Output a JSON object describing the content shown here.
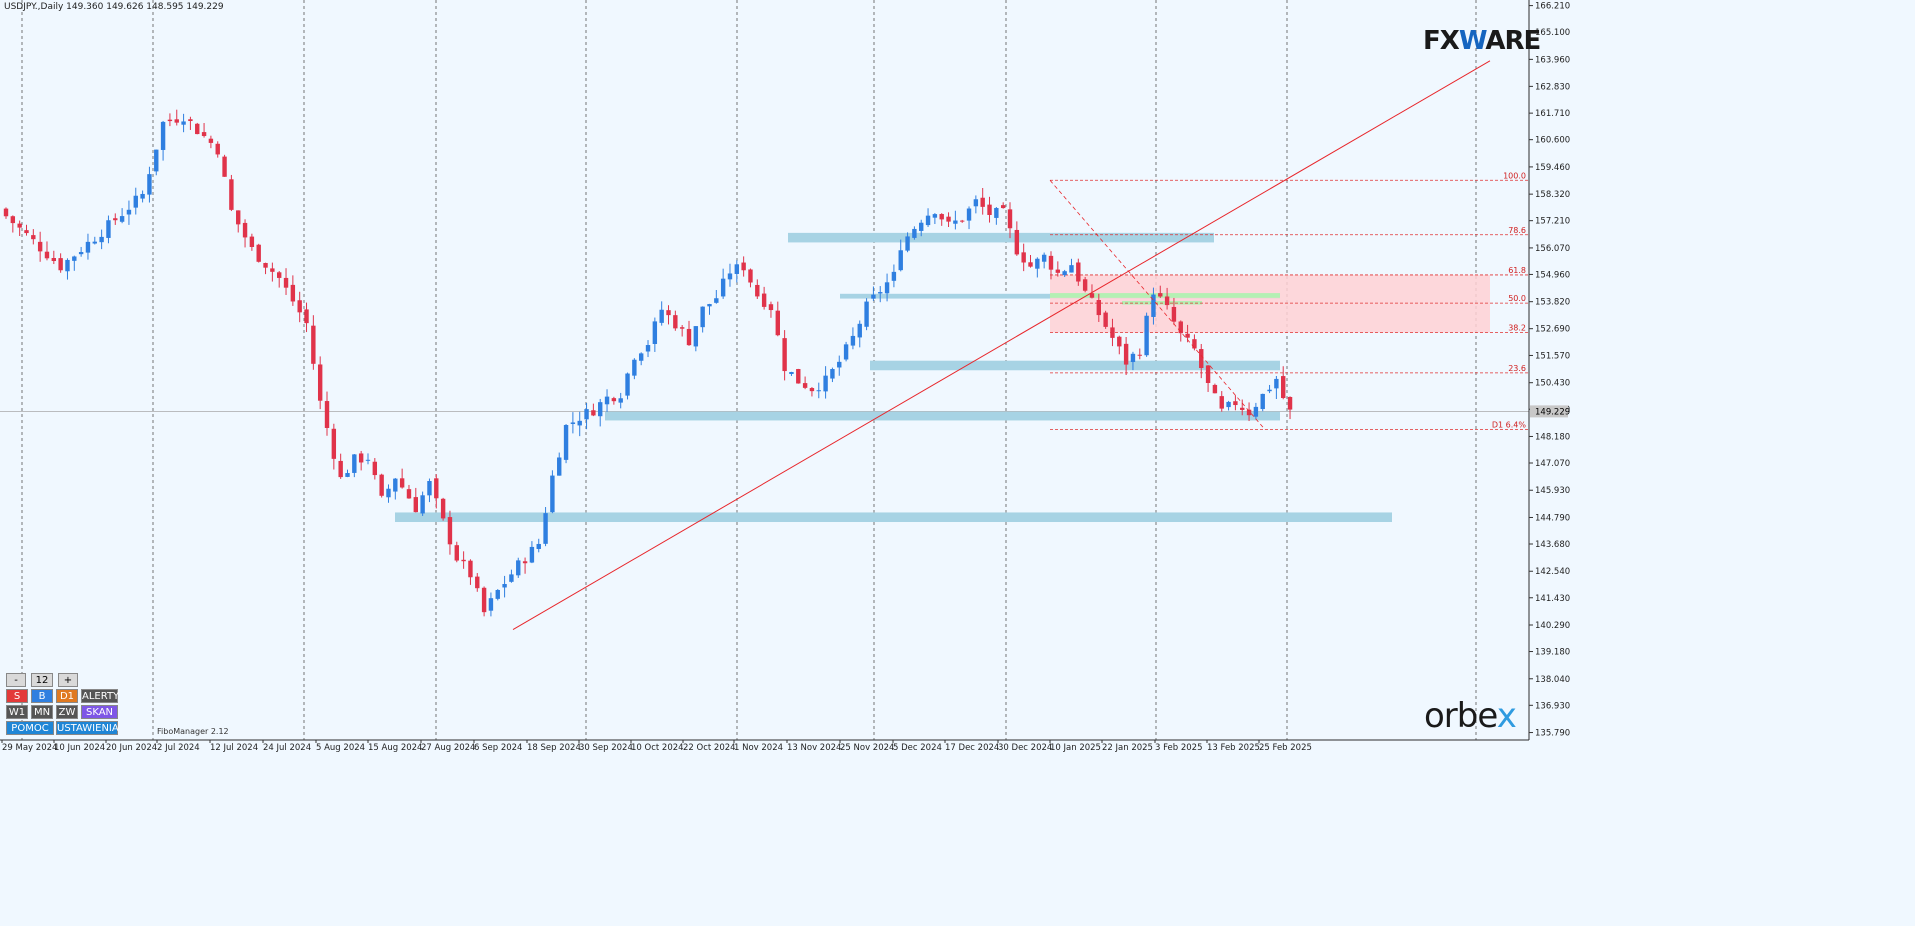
{
  "chart_data": {
    "type": "candlestick",
    "symbol_info": "USDJPY.,Daily  149.360 149.626 148.595 149.229",
    "last_price": "149.229",
    "y_ticks": [
      "166.210",
      "165.100",
      "163.960",
      "162.830",
      "161.710",
      "160.600",
      "159.460",
      "158.320",
      "157.210",
      "156.070",
      "154.960",
      "153.820",
      "152.690",
      "151.570",
      "150.430",
      "149.320",
      "148.180",
      "147.070",
      "145.930",
      "144.790",
      "143.680",
      "142.540",
      "141.430",
      "140.290",
      "139.180",
      "138.040",
      "136.930",
      "135.790"
    ],
    "y_tick_values": [
      166.21,
      165.1,
      163.96,
      162.83,
      161.71,
      160.6,
      159.46,
      158.32,
      157.21,
      156.07,
      154.96,
      153.82,
      152.69,
      151.57,
      150.43,
      149.32,
      148.18,
      147.07,
      145.93,
      144.79,
      143.68,
      142.54,
      141.43,
      140.29,
      139.18,
      138.04,
      136.93,
      135.79
    ],
    "x_ticks": [
      "29 May 2024",
      "10 Jun 2024",
      "20 Jun 2024",
      "2 Jul 2024",
      "12 Jul 2024",
      "24 Jul 2024",
      "5 Aug 2024",
      "15 Aug 2024",
      "27 Aug 2024",
      "6 Sep 2024",
      "18 Sep 2024",
      "30 Sep 2024",
      "10 Oct 2024",
      "22 Oct 2024",
      "1 Nov 2024",
      "13 Nov 2024",
      "25 Nov 2024",
      "5 Dec 2024",
      "17 Dec 2024",
      "30 Dec 2024",
      "10 Jan 2025",
      "22 Jan 2025",
      "3 Feb 2025",
      "13 Feb 2025",
      "25 Feb 2025"
    ],
    "close_points": [
      [
        0,
        157.4
      ],
      [
        8,
        155.3
      ],
      [
        15,
        157.0
      ],
      [
        20,
        158.3
      ],
      [
        23,
        161.3
      ],
      [
        26,
        161.6
      ],
      [
        28,
        161.0
      ],
      [
        31,
        160.2
      ],
      [
        33,
        157.6
      ],
      [
        36,
        156.0
      ],
      [
        40,
        154.8
      ],
      [
        44,
        152.9
      ],
      [
        46,
        149.6
      ],
      [
        49,
        146.4
      ],
      [
        51,
        147.2
      ],
      [
        53,
        147.3
      ],
      [
        55,
        145.5
      ],
      [
        57,
        146.5
      ],
      [
        60,
        145.2
      ],
      [
        62,
        146.2
      ],
      [
        64,
        144.6
      ],
      [
        66,
        143.1
      ],
      [
        68,
        142.4
      ],
      [
        70,
        140.8
      ],
      [
        72,
        141.7
      ],
      [
        75,
        142.8
      ],
      [
        78,
        143.7
      ],
      [
        80,
        146.5
      ],
      [
        82,
        148.6
      ],
      [
        84,
        149.0
      ],
      [
        86,
        149.3
      ],
      [
        88,
        149.8
      ],
      [
        90,
        150.0
      ],
      [
        92,
        151.6
      ],
      [
        94,
        152.1
      ],
      [
        96,
        153.5
      ],
      [
        98,
        152.9
      ],
      [
        100,
        152.2
      ],
      [
        102,
        153.5
      ],
      [
        104,
        154.0
      ],
      [
        106,
        155.1
      ],
      [
        108,
        155.3
      ],
      [
        110,
        154.1
      ],
      [
        112,
        153.6
      ],
      [
        114,
        151.1
      ],
      [
        116,
        150.5
      ],
      [
        118,
        150.2
      ],
      [
        120,
        150.5
      ],
      [
        122,
        151.3
      ],
      [
        124,
        152.3
      ],
      [
        126,
        153.6
      ],
      [
        128,
        154.3
      ],
      [
        130,
        154.9
      ],
      [
        131,
        156.2
      ],
      [
        134,
        157.3
      ],
      [
        136,
        157.7
      ],
      [
        138,
        157.0
      ],
      [
        140,
        157.3
      ],
      [
        142,
        158.0
      ],
      [
        144,
        157.5
      ],
      [
        146,
        157.5
      ],
      [
        148,
        156.0
      ],
      [
        150,
        155.3
      ],
      [
        152,
        155.7
      ],
      [
        154,
        155.0
      ],
      [
        156,
        155.4
      ],
      [
        158,
        154.2
      ],
      [
        160,
        153.3
      ],
      [
        162,
        152.3
      ],
      [
        164,
        151.3
      ],
      [
        166,
        151.8
      ],
      [
        168,
        154.3
      ],
      [
        170,
        153.5
      ],
      [
        172,
        152.4
      ],
      [
        174,
        151.8
      ],
      [
        176,
        150.3
      ],
      [
        178,
        149.2
      ],
      [
        180,
        149.6
      ],
      [
        182,
        149.2
      ],
      [
        184,
        149.9
      ],
      [
        186,
        150.6
      ],
      [
        187,
        149.8
      ],
      [
        188,
        149.2
      ]
    ],
    "annotations": {
      "fib_levels": [
        {
          "label": "100.0",
          "price": 158.9
        },
        {
          "label": "78.6",
          "price": 156.62
        },
        {
          "label": "61.8",
          "price": 154.94
        },
        {
          "label": "50.0",
          "price": 153.76
        },
        {
          "label": "38.2",
          "price": 152.53
        },
        {
          "label": "23.6",
          "price": 150.84
        },
        {
          "label": "D1 6.4%",
          "price": 148.47
        }
      ],
      "indicator_name": "FiboManager 2.12"
    }
  },
  "toolbar": {
    "minus": "-",
    "count": "12",
    "plus": "+",
    "s": "S",
    "b": "B",
    "d1": "D1",
    "alerty": "ALERTY",
    "w1": "W1",
    "mn": "MN",
    "zw": "ZW",
    "skan": "SKAN",
    "pomoc": "POMOC",
    "ustawienia": "USTAWIENIA"
  },
  "brand": {
    "fxware_a": "FX",
    "fxware_w": "W",
    "fxware_b": "ARE",
    "orbex_a": "orbe",
    "orbex_x": "x"
  },
  "colors": {
    "bull": "#2f7fe0",
    "bear": "#e0334a",
    "zone": "#a7d3e4",
    "fib_zone": "#ffd1d5",
    "green_zone": "#b4f0b4",
    "line": "#e8262b"
  }
}
